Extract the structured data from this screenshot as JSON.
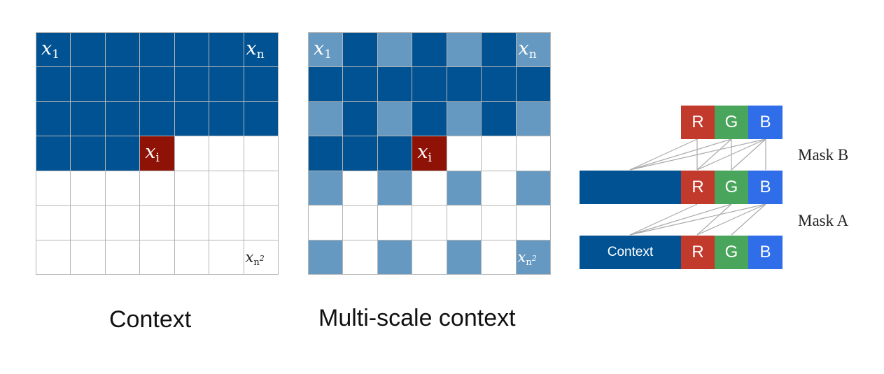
{
  "colors": {
    "dark_blue": "#005293",
    "light_blue": "#6699c1",
    "dark_red": "#8f1206",
    "white": "#ffffff",
    "R": "#c23a2c",
    "G": "#4aa55c",
    "B": "#2f6ee8",
    "line": "#aaaaaa"
  },
  "left_panel": {
    "caption": "Context",
    "labels": {
      "x1": "x",
      "x1_sub": "1",
      "xn": "x",
      "xn_sub": "n",
      "xi": "x",
      "xi_sub": "i",
      "xn2": "x",
      "xn2_sub": "n",
      "xn2_sup": "2"
    },
    "rows": [
      [
        "D",
        "D",
        "D",
        "D",
        "D",
        "D",
        "D"
      ],
      [
        "D",
        "D",
        "D",
        "D",
        "D",
        "D",
        "D"
      ],
      [
        "D",
        "D",
        "D",
        "D",
        "D",
        "D",
        "D"
      ],
      [
        "D",
        "D",
        "D",
        "X",
        "W",
        "W",
        "W"
      ],
      [
        "W",
        "W",
        "W",
        "W",
        "W",
        "W",
        "W"
      ],
      [
        "W",
        "W",
        "W",
        "W",
        "W",
        "W",
        "W"
      ],
      [
        "W",
        "W",
        "W",
        "W",
        "W",
        "W",
        "W"
      ]
    ]
  },
  "middle_panel": {
    "caption": "Multi-scale context",
    "labels": {
      "x1": "x",
      "x1_sub": "1",
      "xn": "x",
      "xn_sub": "n",
      "xi": "x",
      "xi_sub": "i",
      "xn2": "x",
      "xn2_sub": "n",
      "xn2_sup": "2"
    },
    "rows": [
      [
        "L",
        "D",
        "L",
        "D",
        "L",
        "D",
        "L"
      ],
      [
        "D",
        "D",
        "D",
        "D",
        "D",
        "D",
        "D"
      ],
      [
        "L",
        "D",
        "L",
        "D",
        "L",
        "D",
        "L"
      ],
      [
        "D",
        "D",
        "D",
        "X",
        "W",
        "W",
        "W"
      ],
      [
        "L",
        "W",
        "L",
        "W",
        "L",
        "W",
        "L"
      ],
      [
        "W",
        "W",
        "W",
        "W",
        "W",
        "W",
        "W"
      ],
      [
        "L",
        "W",
        "L",
        "W",
        "L",
        "W",
        "L"
      ]
    ]
  },
  "right_panel": {
    "mask_b": "Mask B",
    "mask_a": "Mask A",
    "context_label": "Context",
    "channels": [
      "R",
      "G",
      "B"
    ]
  }
}
